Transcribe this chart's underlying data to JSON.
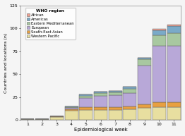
{
  "weeks": [
    1,
    2,
    3,
    4,
    5,
    6,
    7,
    8,
    9,
    10,
    11
  ],
  "regions": [
    "Western Pacific",
    "South-East Asian",
    "European",
    "Eastern Mediterranean",
    "Americas",
    "African"
  ],
  "colors": {
    "Western Pacific": "#e8dfa0",
    "South-East Asian": "#e8a040",
    "European": "#b8a8d8",
    "Eastern Mediterranean": "#a8c8a0",
    "Americas": "#7aaac8",
    "African": "#f0a090"
  },
  "data": {
    "Western Pacific": [
      1,
      1,
      3,
      10,
      11,
      11,
      11,
      12,
      13,
      14,
      14
    ],
    "South-East Asian": [
      0,
      0,
      1,
      2,
      3,
      3,
      3,
      3,
      4,
      5,
      5
    ],
    "European": [
      0,
      0,
      0,
      1,
      10,
      12,
      13,
      14,
      42,
      62,
      62
    ],
    "Eastern Mediterranean": [
      0,
      0,
      0,
      1,
      2,
      3,
      3,
      5,
      7,
      11,
      14
    ],
    "Americas": [
      0,
      0,
      0,
      1,
      2,
      2,
      2,
      2,
      2,
      6,
      7
    ],
    "African": [
      0,
      0,
      0,
      0,
      0,
      0,
      0,
      0,
      0,
      1,
      2
    ]
  },
  "legend_order": [
    "African",
    "Americas",
    "Eastern Mediterranean",
    "European",
    "South-East Asian",
    "Western Pacific"
  ],
  "ylabel": "Countries and locations (n)",
  "xlabel": "Epidemiological week",
  "legend_title": "WHO region",
  "ylim": [
    0,
    125
  ],
  "yticks": [
    0,
    25,
    50,
    75,
    100,
    125
  ],
  "background_color": "#f5f5f5"
}
